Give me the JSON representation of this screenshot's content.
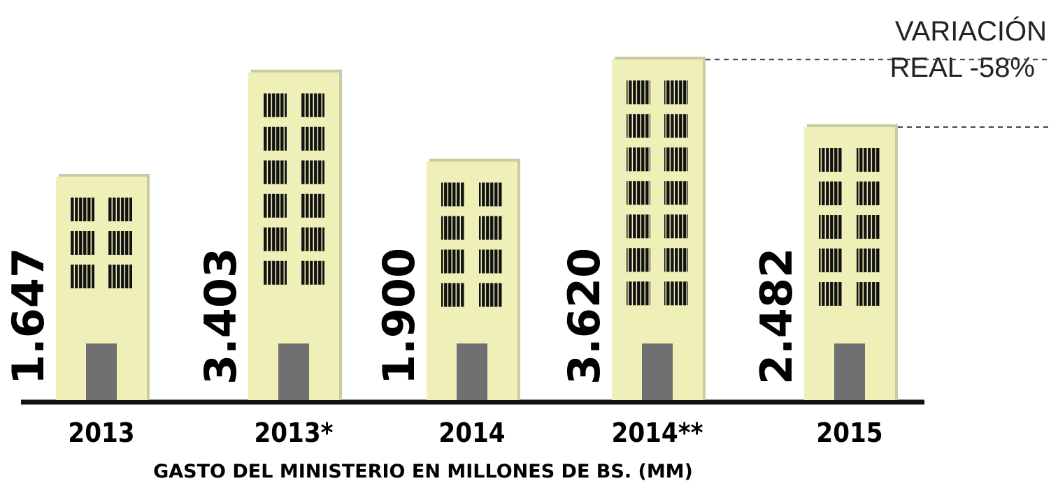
{
  "chart_data": {
    "type": "bar",
    "x_label": "GASTO DEL MINISTERIO EN MILLONES DE BS. (MM)",
    "annotation": [
      "VARIACIÓN",
      "REAL -58%"
    ],
    "categories": [
      "2013",
      "2013*",
      "2014",
      "2014**",
      "2015"
    ],
    "values": [
      1647,
      3403,
      1900,
      3620,
      2482
    ],
    "value_labels": [
      "1.647",
      "3.403",
      "1.900",
      "3.620",
      "2.482"
    ],
    "color": "#eef0b8"
  }
}
